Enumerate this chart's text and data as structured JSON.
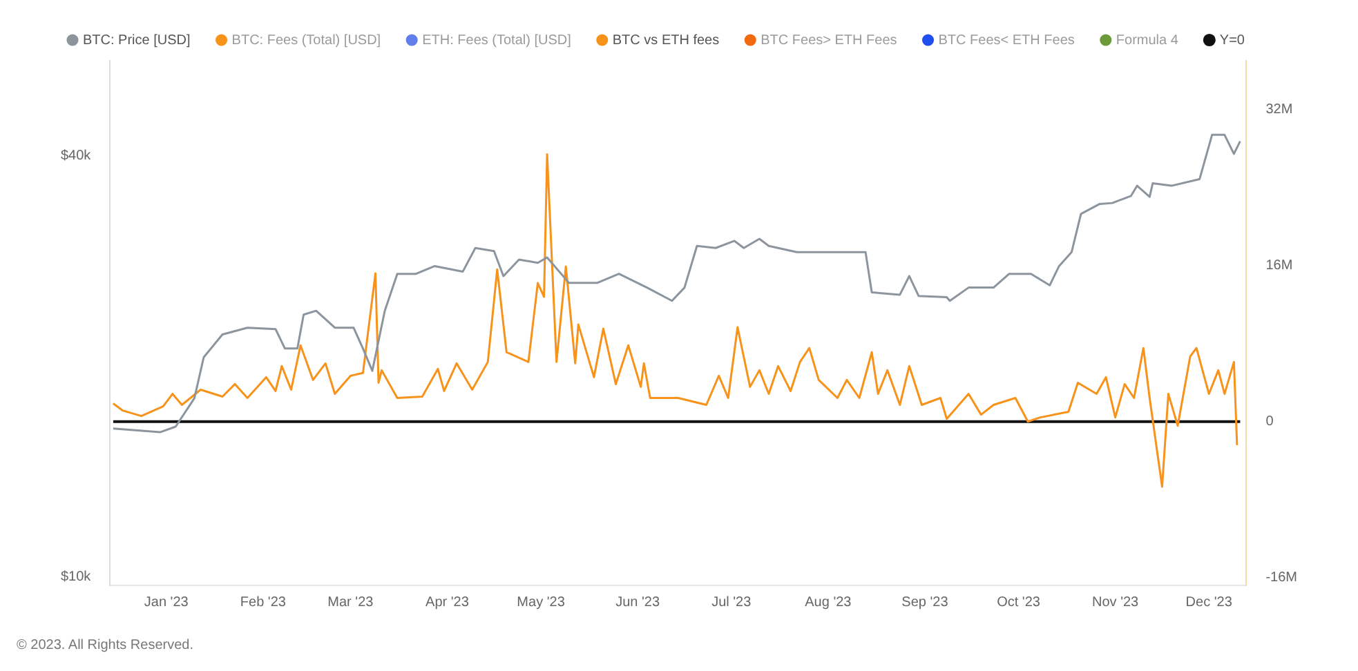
{
  "chart_data": {
    "type": "line",
    "legend": "top left",
    "marker": "none",
    "log": "y",
    "xlim": [
      "2022-12-14",
      "2023-12-13"
    ],
    "xticks": [
      {
        "value": "2023-01-01",
        "label": "Jan '23"
      },
      {
        "value": "2023-02-01",
        "label": "Feb '23"
      },
      {
        "value": "2023-03-01",
        "label": "Mar '23"
      },
      {
        "value": "2023-04-01",
        "label": "Apr '23"
      },
      {
        "value": "2023-05-01",
        "label": "May '23"
      },
      {
        "value": "2023-06-01",
        "label": "Jun '23"
      },
      {
        "value": "2023-07-01",
        "label": "Jul '23"
      },
      {
        "value": "2023-08-01",
        "label": "Aug '23"
      },
      {
        "value": "2023-09-01",
        "label": "Sep '23"
      },
      {
        "value": "2023-10-01",
        "label": "Oct '23"
      },
      {
        "value": "2023-11-01",
        "label": "Nov '23"
      },
      {
        "value": "2023-12-01",
        "label": "Dec '23"
      }
    ],
    "ylim": [
      9730,
      54600
    ],
    "yticks": [
      {
        "value": 10000,
        "label": "$10k"
      },
      {
        "value": 40000,
        "label": "$40k"
      }
    ],
    "y2lim": [
      -16800000,
      37000000
    ],
    "y2ticks": [
      {
        "value": -16000000,
        "label": "-16M"
      },
      {
        "value": 0,
        "label": "0"
      },
      {
        "value": 16000000,
        "label": "16M"
      },
      {
        "value": 32000000,
        "label": "32M"
      }
    ],
    "annotations": [
      "© 2023. All Rights Reserved."
    ],
    "series": [
      {
        "name": "BTC: Price [USD]",
        "color": "#8c959d",
        "x": [
          "2022-12-15",
          "2022-12-30",
          "2023-01-04",
          "2023-01-10",
          "2023-01-13",
          "2023-01-19",
          "2023-01-27",
          "2023-02-05",
          "2023-02-08",
          "2023-02-12",
          "2023-02-14",
          "2023-02-18",
          "2023-02-24",
          "2023-03-02",
          "2023-03-05",
          "2023-03-08",
          "2023-03-12",
          "2023-03-16",
          "2023-03-22",
          "2023-03-28",
          "2023-04-06",
          "2023-04-10",
          "2023-04-16",
          "2023-04-19",
          "2023-04-24",
          "2023-04-30",
          "2023-05-03",
          "2023-05-10",
          "2023-05-19",
          "2023-05-26",
          "2023-06-04",
          "2023-06-12",
          "2023-06-16",
          "2023-06-20",
          "2023-06-26",
          "2023-07-02",
          "2023-07-05",
          "2023-07-10",
          "2023-07-13",
          "2023-07-22",
          "2023-08-05",
          "2023-08-13",
          "2023-08-15",
          "2023-08-24",
          "2023-08-27",
          "2023-08-30",
          "2023-09-08",
          "2023-09-09",
          "2023-09-15",
          "2023-09-23",
          "2023-09-28",
          "2023-10-05",
          "2023-10-11",
          "2023-10-14",
          "2023-10-18",
          "2023-10-21",
          "2023-10-27",
          "2023-10-31",
          "2023-11-06",
          "2023-11-08",
          "2023-11-12",
          "2023-11-13",
          "2023-11-19",
          "2023-11-28",
          "2023-12-02",
          "2023-12-06",
          "2023-12-09",
          "2023-12-11"
        ],
        "values": [
          16300,
          16100,
          16400,
          18000,
          20600,
          22200,
          22700,
          22600,
          21200,
          21200,
          23700,
          24000,
          22700,
          22700,
          21200,
          19700,
          24000,
          27100,
          27100,
          27800,
          27300,
          29500,
          29200,
          26900,
          28400,
          28100,
          28600,
          26300,
          26300,
          27100,
          25900,
          24800,
          25900,
          29700,
          29500,
          30200,
          29500,
          30400,
          29700,
          29100,
          29100,
          29100,
          25500,
          25300,
          26900,
          25200,
          25100,
          24800,
          25900,
          25900,
          27100,
          27100,
          26100,
          27800,
          29100,
          33000,
          34100,
          34200,
          35000,
          36200,
          34900,
          36500,
          36200,
          37000,
          42800,
          42800,
          40200,
          41900
        ]
      },
      {
        "name": "BTC: Fees (Total) [USD]",
        "color": "#f7931a"
      },
      {
        "name": "ETH: Fees (Total) [USD]",
        "color": "#627eea"
      },
      {
        "name": "BTC vs ETH fees",
        "color": "#f7931a",
        "axis": "y2",
        "x": [
          "2022-12-15",
          "2022-12-18",
          "2022-12-24",
          "2022-12-31",
          "2023-01-03",
          "2023-01-06",
          "2023-01-12",
          "2023-01-19",
          "2023-01-23",
          "2023-01-27",
          "2023-02-02",
          "2023-02-05",
          "2023-02-07",
          "2023-02-10",
          "2023-02-13",
          "2023-02-17",
          "2023-02-21",
          "2023-02-24",
          "2023-03-01",
          "2023-03-05",
          "2023-03-09",
          "2023-03-10",
          "2023-03-11",
          "2023-03-16",
          "2023-03-24",
          "2023-03-29",
          "2023-03-31",
          "2023-04-04",
          "2023-04-09",
          "2023-04-14",
          "2023-04-17",
          "2023-04-20",
          "2023-04-27",
          "2023-04-30",
          "2023-05-02",
          "2023-05-03",
          "2023-05-06",
          "2023-05-09",
          "2023-05-12",
          "2023-05-13",
          "2023-05-18",
          "2023-05-21",
          "2023-05-25",
          "2023-05-29",
          "2023-06-02",
          "2023-06-03",
          "2023-06-05",
          "2023-06-14",
          "2023-06-23",
          "2023-06-27",
          "2023-06-30",
          "2023-07-03",
          "2023-07-07",
          "2023-07-10",
          "2023-07-13",
          "2023-07-16",
          "2023-07-20",
          "2023-07-23",
          "2023-07-26",
          "2023-07-29",
          "2023-08-04",
          "2023-08-07",
          "2023-08-11",
          "2023-08-15",
          "2023-08-17",
          "2023-08-20",
          "2023-08-24",
          "2023-08-27",
          "2023-08-31",
          "2023-09-06",
          "2023-09-08",
          "2023-09-15",
          "2023-09-19",
          "2023-09-23",
          "2023-09-30",
          "2023-10-04",
          "2023-10-08",
          "2023-10-17",
          "2023-10-20",
          "2023-10-26",
          "2023-10-29",
          "2023-11-01",
          "2023-11-04",
          "2023-11-07",
          "2023-11-10",
          "2023-11-12",
          "2023-11-16",
          "2023-11-18",
          "2023-11-21",
          "2023-11-25",
          "2023-11-27",
          "2023-12-01",
          "2023-12-04",
          "2023-12-06",
          "2023-12-09",
          "2023-12-10"
        ],
        "values": [
          1850000,
          1140000,
          570000,
          1560000,
          2840000,
          1710000,
          3270000,
          2560000,
          3840000,
          2420000,
          4550000,
          3130000,
          5690000,
          3270000,
          7820000,
          4270000,
          5970000,
          2840000,
          4690000,
          4980000,
          15200000,
          3980000,
          5260000,
          2420000,
          2560000,
          5400000,
          3130000,
          5970000,
          3270000,
          6110000,
          15600000,
          7110000,
          6110000,
          14200000,
          12800000,
          27400000,
          6110000,
          15900000,
          5970000,
          9950000,
          4550000,
          9530000,
          3840000,
          7820000,
          3560000,
          5970000,
          2420000,
          2420000,
          1710000,
          4690000,
          2420000,
          9670000,
          3560000,
          5260000,
          2840000,
          5690000,
          3130000,
          6110000,
          7540000,
          4270000,
          2420000,
          4270000,
          2420000,
          7110000,
          2840000,
          5260000,
          1710000,
          5690000,
          1710000,
          2420000,
          280000,
          2840000,
          710000,
          1710000,
          2420000,
          0,
          430000,
          1000000,
          3980000,
          2840000,
          4550000,
          430000,
          3840000,
          2420000,
          7540000,
          2420000,
          -6680000,
          2840000,
          -430000,
          6680000,
          7540000,
          2840000,
          5260000,
          2840000,
          6110000,
          -2420000
        ]
      },
      {
        "name": "BTC Fees> ETH Fees",
        "color": "#f26a0f"
      },
      {
        "name": "BTC Fees< ETH Fees",
        "color": "#1f4ff0"
      },
      {
        "name": "Formula 4",
        "color": "#6b9a3a"
      },
      {
        "name": "Y=0",
        "color": "#111111",
        "axis": "y2",
        "x": [
          "2022-12-15",
          "2023-12-11"
        ],
        "values": [
          0,
          0
        ]
      }
    ]
  }
}
